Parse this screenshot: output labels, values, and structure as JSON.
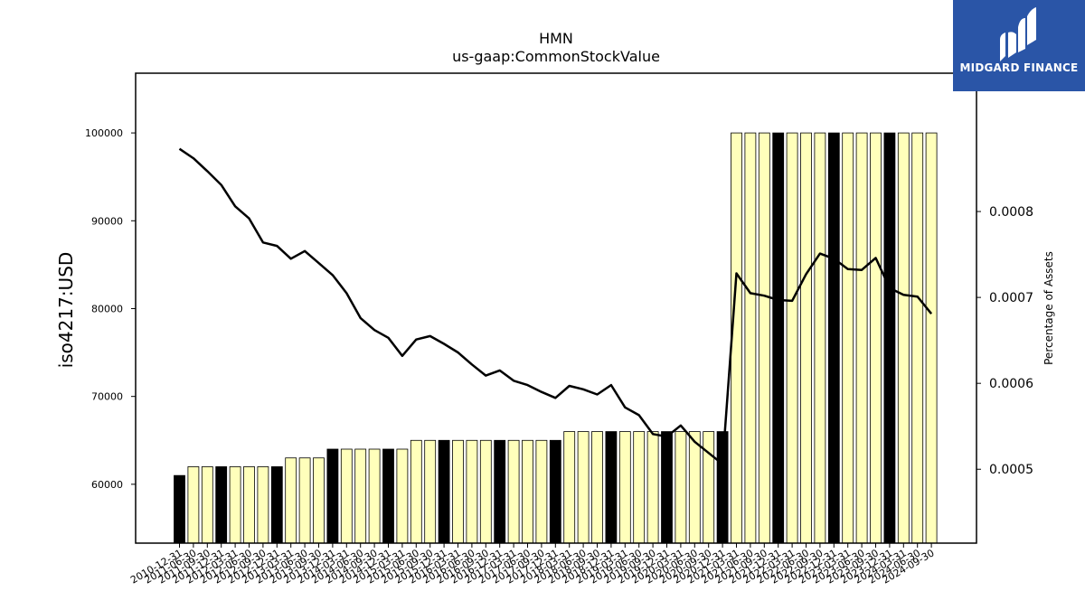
{
  "brand": {
    "name": "MIDGARD FINANCE",
    "accent": "#2a55a7"
  },
  "chart_data": {
    "type": "bar",
    "title": "HMN",
    "subtitle": "us-gaap:CommonStockValue",
    "ylabel": "iso4217:USD",
    "ylabel_right": "Percentage of Assets",
    "ylim": [
      53300,
      106800
    ],
    "y2lim": [
      0.000414,
      0.000961
    ],
    "yticks": [
      60000,
      70000,
      80000,
      90000,
      100000
    ],
    "y2ticks": [
      0.0005,
      0.0006,
      0.0007,
      0.0008
    ],
    "categories": [
      "2010-12-31",
      "2011-06-30",
      "2011-09-30",
      "2011-12-31",
      "2012-03-31",
      "2012-06-30",
      "2012-09-30",
      "2012-12-31",
      "2013-03-31",
      "2013-06-30",
      "2013-09-30",
      "2013-12-31",
      "2014-03-31",
      "2014-06-30",
      "2014-09-30",
      "2014-12-31",
      "2015-03-31",
      "2015-06-30",
      "2015-09-30",
      "2015-12-31",
      "2016-03-31",
      "2016-06-30",
      "2016-09-30",
      "2016-12-31",
      "2017-03-31",
      "2017-06-30",
      "2017-09-30",
      "2017-12-31",
      "2018-03-31",
      "2018-06-30",
      "2018-09-30",
      "2018-12-31",
      "2019-03-31",
      "2019-06-30",
      "2019-09-30",
      "2019-12-31",
      "2020-03-31",
      "2020-06-30",
      "2020-09-30",
      "2020-12-31",
      "2021-03-31",
      "2021-06-30",
      "2021-09-30",
      "2021-12-31",
      "2022-03-31",
      "2022-06-30",
      "2022-09-30",
      "2022-12-31",
      "2023-03-31",
      "2023-06-30",
      "2023-09-30",
      "2023-12-31",
      "2024-03-31",
      "2024-06-30",
      "2024-09-30"
    ],
    "values": [
      61000,
      62000,
      62000,
      62000,
      62000,
      62000,
      62000,
      62000,
      63000,
      63000,
      63000,
      64000,
      64000,
      64000,
      64000,
      64000,
      64000,
      65000,
      65000,
      65000,
      65000,
      65000,
      65000,
      65000,
      65000,
      65000,
      65000,
      65000,
      66000,
      66000,
      66000,
      66000,
      66000,
      66000,
      66000,
      66000,
      66000,
      66000,
      66000,
      66000,
      100000,
      100000,
      100000,
      100000,
      100000,
      100000,
      100000,
      100000,
      100000,
      100000,
      100000,
      100000,
      100000,
      100000,
      100000
    ],
    "annual_flags": [
      1,
      0,
      0,
      1,
      0,
      0,
      0,
      1,
      0,
      0,
      0,
      1,
      0,
      0,
      0,
      1,
      0,
      0,
      0,
      1,
      0,
      0,
      0,
      1,
      0,
      0,
      0,
      1,
      0,
      0,
      0,
      1,
      0,
      0,
      0,
      1,
      0,
      0,
      0,
      1,
      0,
      0,
      0,
      1,
      0,
      0,
      0,
      1,
      0,
      0,
      0,
      1,
      0,
      0,
      0
    ],
    "series": [
      {
        "name": "Percentage of Assets",
        "values": [
          0.000873,
          0.000862,
          0.000847,
          0.000831,
          0.000806,
          0.000792,
          0.000764,
          0.00076,
          0.000745,
          0.000754,
          0.00074,
          0.000726,
          0.000705,
          0.000676,
          0.000662,
          0.000653,
          0.000632,
          0.000651,
          0.000655,
          0.000646,
          0.000636,
          0.000622,
          0.000609,
          0.000615,
          0.000603,
          0.000598,
          0.00059,
          0.000583,
          0.000597,
          0.000593,
          0.000587,
          0.000598,
          0.000572,
          0.000563,
          0.000541,
          0.000538,
          0.000551,
          0.000532,
          0.000519,
          0.000506,
          0.000728,
          0.000705,
          0.000702,
          0.000697,
          0.000696,
          0.000727,
          0.000751,
          0.000745,
          0.000733,
          0.000732,
          0.000746,
          0.000711,
          0.000703,
          0.000701,
          0.000681
        ]
      }
    ],
    "colors": {
      "bar_regular": "#ffffbb",
      "bar_annual": "#000000",
      "line": "#000000"
    },
    "grid": false,
    "legend": "none"
  }
}
